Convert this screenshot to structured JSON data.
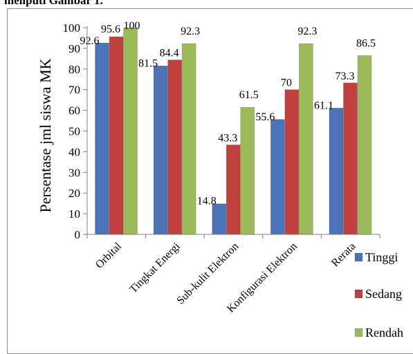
{
  "caption": "meliputi Gambar 1.",
  "chart_data": {
    "type": "bar",
    "categories": [
      "Orbital",
      "Tingkat Energi",
      "Sub-kulit Elektron",
      "Konfigurasi Elektron",
      "Rerata"
    ],
    "series": [
      {
        "name": "Tinggi",
        "color": "#4a73b8",
        "values": [
          92.6,
          81.5,
          14.8,
          55.6,
          61.1
        ]
      },
      {
        "name": "Sedang",
        "color": "#c0403e",
        "values": [
          95.6,
          84.4,
          43.3,
          70,
          73.3
        ]
      },
      {
        "name": "Rendah",
        "color": "#9bbb59",
        "values": [
          100,
          92.3,
          61.5,
          92.3,
          86.5
        ]
      }
    ],
    "ylabel": "Persentase jml siswa MK",
    "xlabel": "",
    "ylim": [
      0,
      100
    ],
    "ytick_step": 10,
    "grid": false,
    "legend_position": "right",
    "data_labels": true
  }
}
